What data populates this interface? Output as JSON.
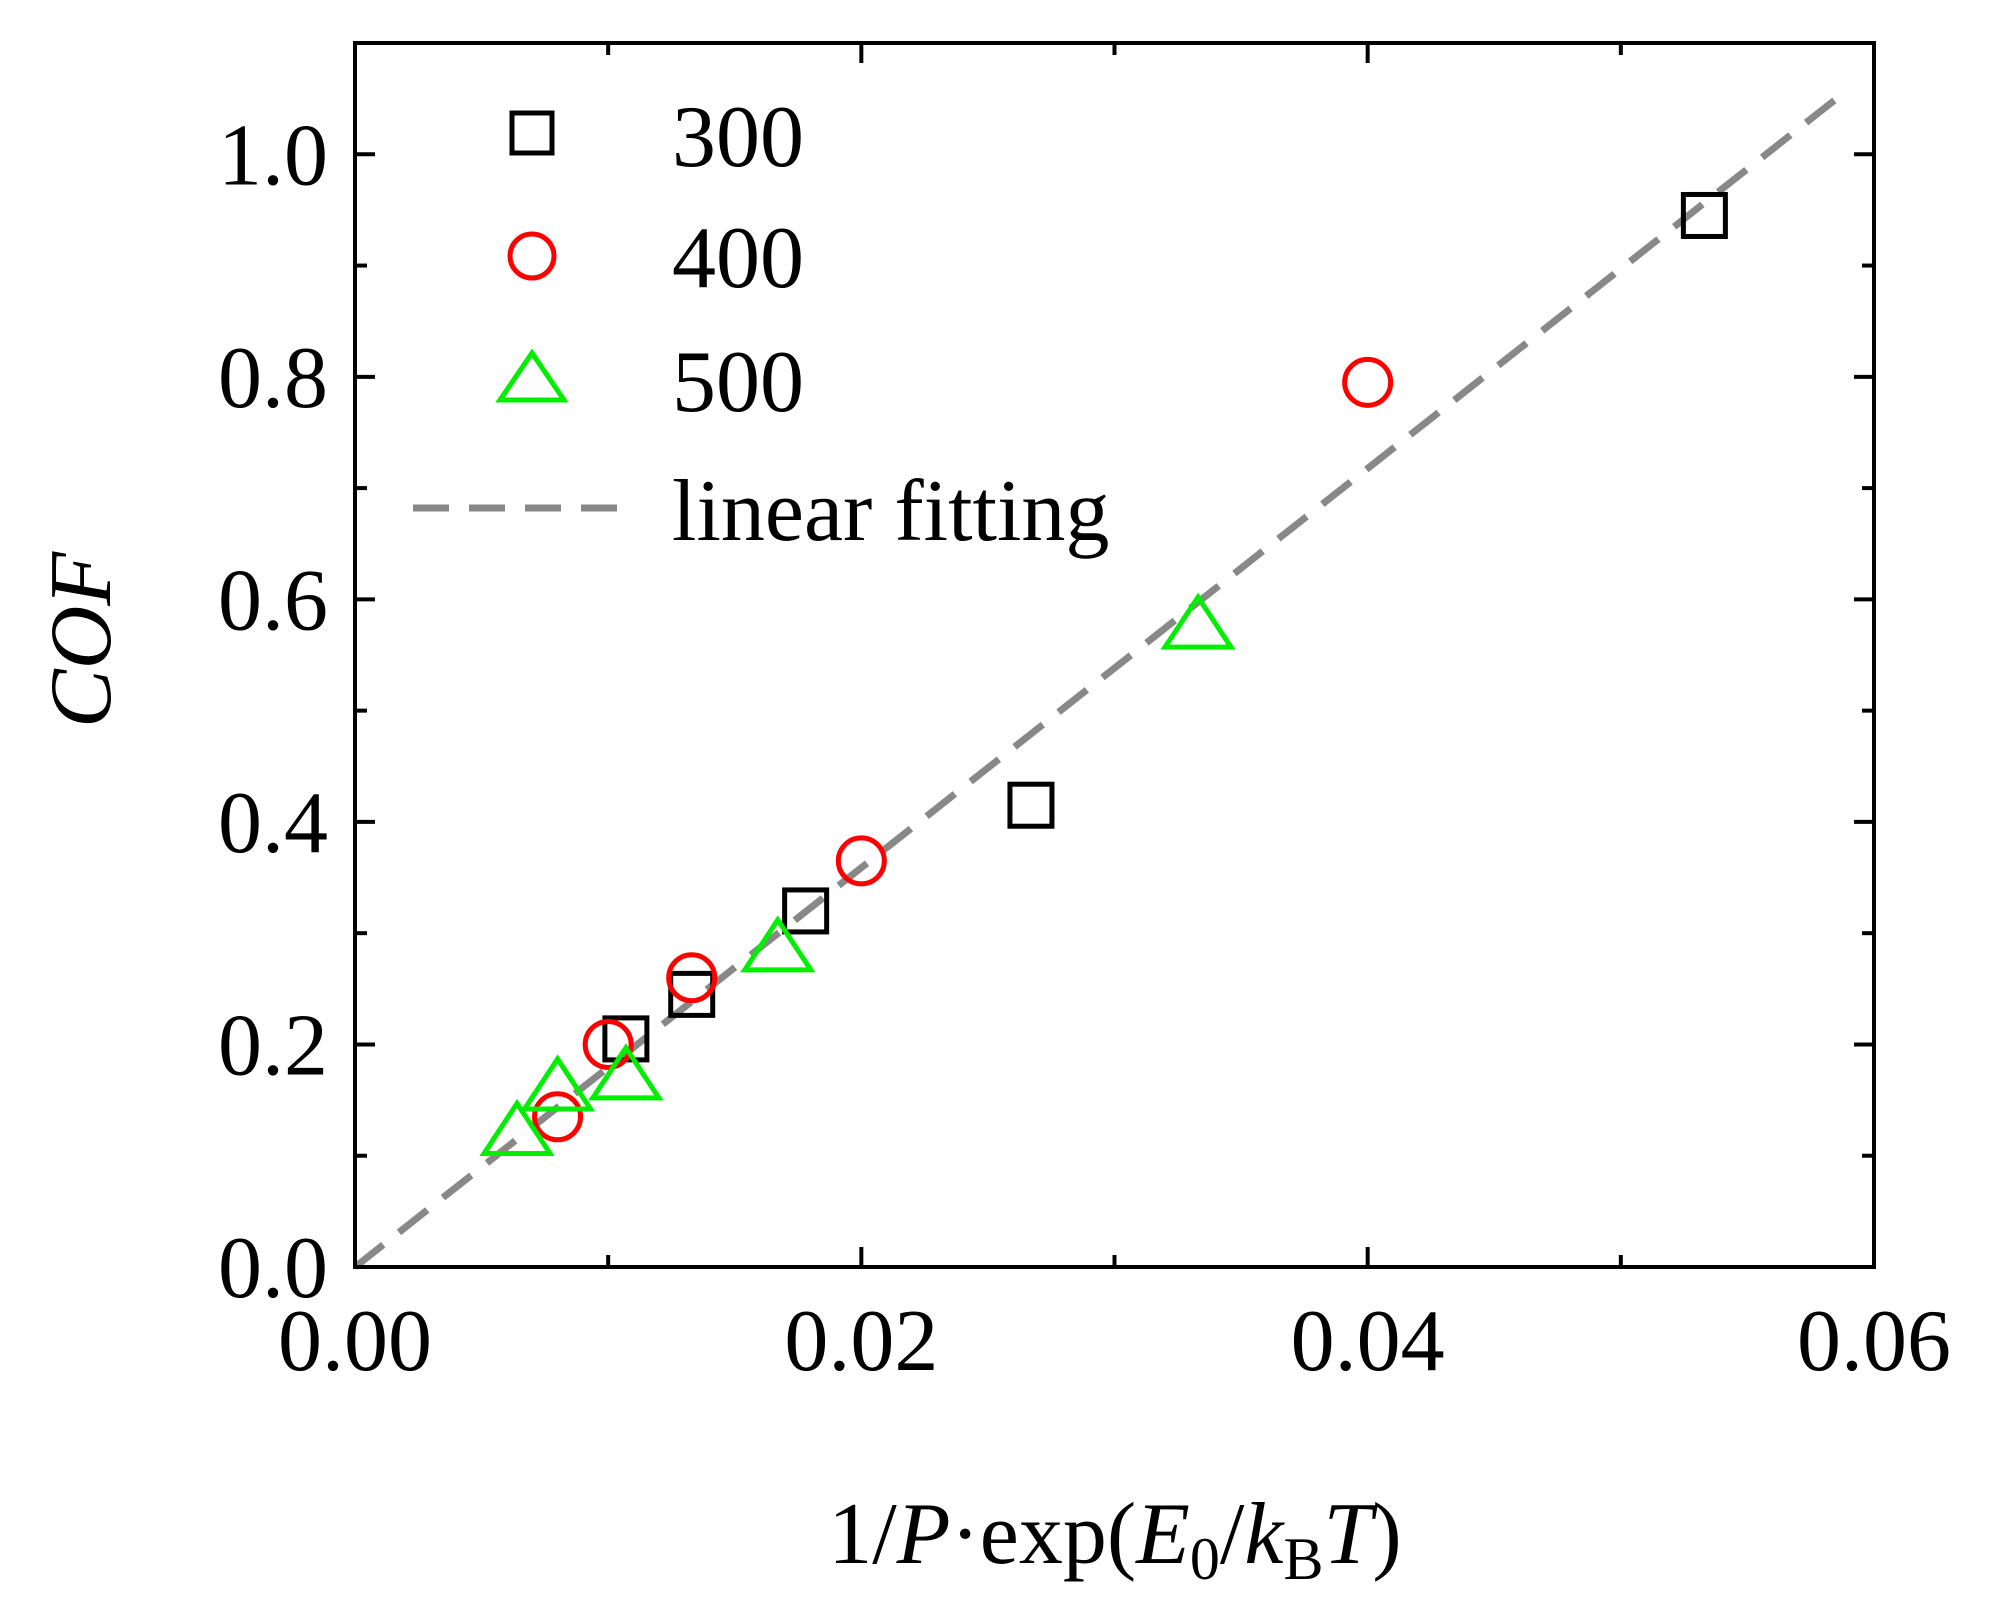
{
  "chart_data": {
    "type": "scatter",
    "title": "",
    "xlabel": {
      "prefix": "1/",
      "P": "P",
      "dot": "·",
      "func": "exp(",
      "E": "E",
      "E_sub": "0",
      "slash": "/",
      "k": "k",
      "k_sub": "B",
      "T": "T",
      "close": ")"
    },
    "ylabel": "COF",
    "xlim": [
      0.0,
      0.06
    ],
    "ylim": [
      0.0,
      1.1
    ],
    "x_ticks": [
      0.0,
      0.02,
      0.04,
      0.06
    ],
    "x_tick_labels": [
      "0.00",
      "0.02",
      "0.04",
      "0.06"
    ],
    "y_ticks": [
      0.0,
      0.2,
      0.4,
      0.6,
      0.8,
      1.0
    ],
    "y_tick_labels": [
      "0.0",
      "0.2",
      "0.4",
      "0.6",
      "0.8",
      "1.0"
    ],
    "x_minor_ticks": [
      0.01,
      0.03,
      0.05
    ],
    "y_minor_ticks": [
      0.1,
      0.3,
      0.5,
      0.7,
      0.9
    ],
    "legend_position": "top-left",
    "series": [
      {
        "name": "300",
        "marker": "square",
        "color": "#000000",
        "x": [
          0.0107,
          0.0133,
          0.0178,
          0.0267,
          0.0533
        ],
        "y": [
          0.205,
          0.245,
          0.32,
          0.415,
          0.945
        ]
      },
      {
        "name": "400",
        "marker": "circle",
        "color": "#ff0000",
        "x": [
          0.008,
          0.01,
          0.0133,
          0.02,
          0.04
        ],
        "y": [
          0.135,
          0.2,
          0.26,
          0.365,
          0.795
        ]
      },
      {
        "name": "500",
        "marker": "triangle",
        "color": "#00ee00",
        "x": [
          0.0064,
          0.008,
          0.0107,
          0.0167,
          0.0333
        ],
        "y": [
          0.12,
          0.16,
          0.17,
          0.285,
          0.575
        ]
      }
    ],
    "fit": {
      "name": "linear fitting",
      "color": "#888888",
      "style": "dashed",
      "x": [
        0.0,
        0.0588
      ],
      "y": [
        0.0,
        1.055
      ]
    }
  }
}
